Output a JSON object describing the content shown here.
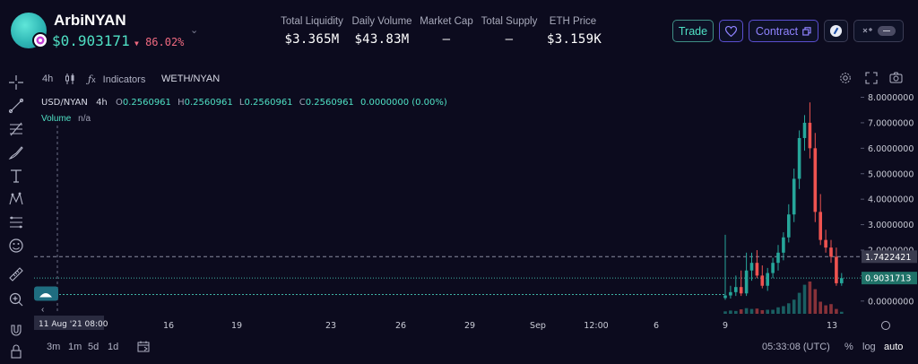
{
  "token": {
    "name": "ArbiNYAN",
    "price": "$0.903171",
    "change": "86.02%",
    "change_arrow": "▼",
    "caret": "⌄"
  },
  "stats": [
    {
      "label": "Total Liquidity",
      "value": "$3.365M"
    },
    {
      "label": "Daily Volume",
      "value": "$43.83M"
    },
    {
      "label": "Market Cap",
      "value": "—"
    },
    {
      "label": "Total Supply",
      "value": "—"
    },
    {
      "label": "ETH Price",
      "value": "$3.159K"
    }
  ],
  "actions": {
    "trade_label": "Trade",
    "contract_label": "Contract"
  },
  "toolbar": {
    "interval": "4h",
    "indicators_label": "Indicators",
    "symbol": "WETH/NYAN"
  },
  "legend": {
    "pair": "USD/NYAN",
    "interval": "4h",
    "o_key": "O",
    "o_val": "0.2560961",
    "h_key": "H",
    "h_val": "0.2560961",
    "l_key": "L",
    "l_val": "0.2560961",
    "c_key": "C",
    "c_val": "0.2560961",
    "chg": "0.0000000 (0.00%)",
    "volume_label": "Volume",
    "volume_val": "n/a"
  },
  "bottom": {
    "ranges": [
      "3m",
      "1m",
      "5d",
      "1d"
    ],
    "time": "05:33:08 (UTC)",
    "pct": "%",
    "log": "log",
    "auto": "auto"
  },
  "colors": {
    "up": "#26a69a",
    "down": "#ef5350",
    "accent": "#4fe0c4",
    "background": "#0c0b1e"
  },
  "chart_data": {
    "type": "candlestick",
    "y_ticks": [
      "8.0000000",
      "7.0000000",
      "6.0000000",
      "5.0000000",
      "4.0000000",
      "3.0000000",
      "2.0000000",
      "1.0000000",
      "0.0000000"
    ],
    "ylim": [
      -0.5,
      8.3
    ],
    "x_ticks": [
      "16",
      "19",
      "23",
      "26",
      "29",
      "Sep",
      "12:00",
      "6",
      "9",
      "13"
    ],
    "crosshair_x_label": "11 Aug '21   08:00",
    "price_lines": [
      {
        "value": 1.7422421,
        "label": "1.7422421",
        "style": "dashed-grey"
      },
      {
        "value": 0.9031713,
        "label": "0.9031713",
        "style": "dotted-teal"
      }
    ],
    "current_price_dotted": 0.256,
    "candles": [
      {
        "o": 0.12,
        "h": 2.6,
        "l": 0.05,
        "c": 0.22
      },
      {
        "o": 0.22,
        "h": 0.6,
        "l": 0.1,
        "c": 0.35
      },
      {
        "o": 0.35,
        "h": 1.0,
        "l": 0.2,
        "c": 0.55
      },
      {
        "o": 0.55,
        "h": 1.2,
        "l": 0.2,
        "c": 0.3
      },
      {
        "o": 0.3,
        "h": 1.9,
        "l": 0.2,
        "c": 1.2
      },
      {
        "o": 1.2,
        "h": 1.9,
        "l": 0.8,
        "c": 1.5
      },
      {
        "o": 1.5,
        "h": 2.0,
        "l": 0.9,
        "c": 1.0
      },
      {
        "o": 1.0,
        "h": 1.4,
        "l": 0.5,
        "c": 0.6
      },
      {
        "o": 0.6,
        "h": 1.3,
        "l": 0.4,
        "c": 1.1
      },
      {
        "o": 1.1,
        "h": 1.7,
        "l": 0.9,
        "c": 1.5
      },
      {
        "o": 1.5,
        "h": 2.2,
        "l": 1.2,
        "c": 1.9
      },
      {
        "o": 1.9,
        "h": 2.7,
        "l": 1.6,
        "c": 2.5
      },
      {
        "o": 2.5,
        "h": 3.8,
        "l": 2.3,
        "c": 3.4
      },
      {
        "o": 3.4,
        "h": 5.2,
        "l": 3.1,
        "c": 4.8
      },
      {
        "o": 4.8,
        "h": 6.7,
        "l": 4.4,
        "c": 6.4
      },
      {
        "o": 6.4,
        "h": 7.3,
        "l": 5.9,
        "c": 7.0
      },
      {
        "o": 7.0,
        "h": 7.8,
        "l": 5.6,
        "c": 6.0
      },
      {
        "o": 6.0,
        "h": 6.6,
        "l": 3.1,
        "c": 3.5
      },
      {
        "o": 3.5,
        "h": 4.2,
        "l": 2.2,
        "c": 2.4
      },
      {
        "o": 2.4,
        "h": 2.8,
        "l": 1.9,
        "c": 2.1
      },
      {
        "o": 2.1,
        "h": 2.4,
        "l": 1.5,
        "c": 1.74
      },
      {
        "o": 1.74,
        "h": 2.1,
        "l": 0.6,
        "c": 0.7
      },
      {
        "o": 0.7,
        "h": 1.1,
        "l": 0.6,
        "c": 0.9
      }
    ],
    "volumes": [
      0.6,
      0.8,
      0.7,
      1.1,
      1.4,
      1.2,
      1.3,
      0.9,
      1.0,
      1.0,
      1.6,
      1.9,
      2.6,
      3.5,
      5.2,
      7.2,
      8.0,
      6.1,
      3.0,
      2.1,
      2.4,
      1.2,
      0.5
    ]
  }
}
